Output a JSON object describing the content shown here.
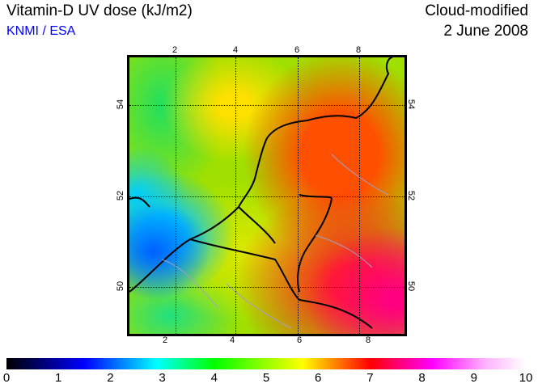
{
  "header": {
    "title": "Vitamin-D UV dose (kJ/m2)",
    "organization": "KNMI / ESA",
    "mode": "Cloud-modified",
    "date": "2 June 2008"
  },
  "map": {
    "lon_ticks_top": [
      "2",
      "4",
      "6",
      "8"
    ],
    "lon_ticks_bottom": [
      "2",
      "4",
      "6",
      "8"
    ],
    "lat_ticks": [
      "54",
      "52",
      "50"
    ]
  },
  "colorbar": {
    "labels": [
      "0",
      "1",
      "2",
      "3",
      "4",
      "5",
      "6",
      "7",
      "8",
      "9",
      "10"
    ],
    "min": 0,
    "max": 10
  }
}
